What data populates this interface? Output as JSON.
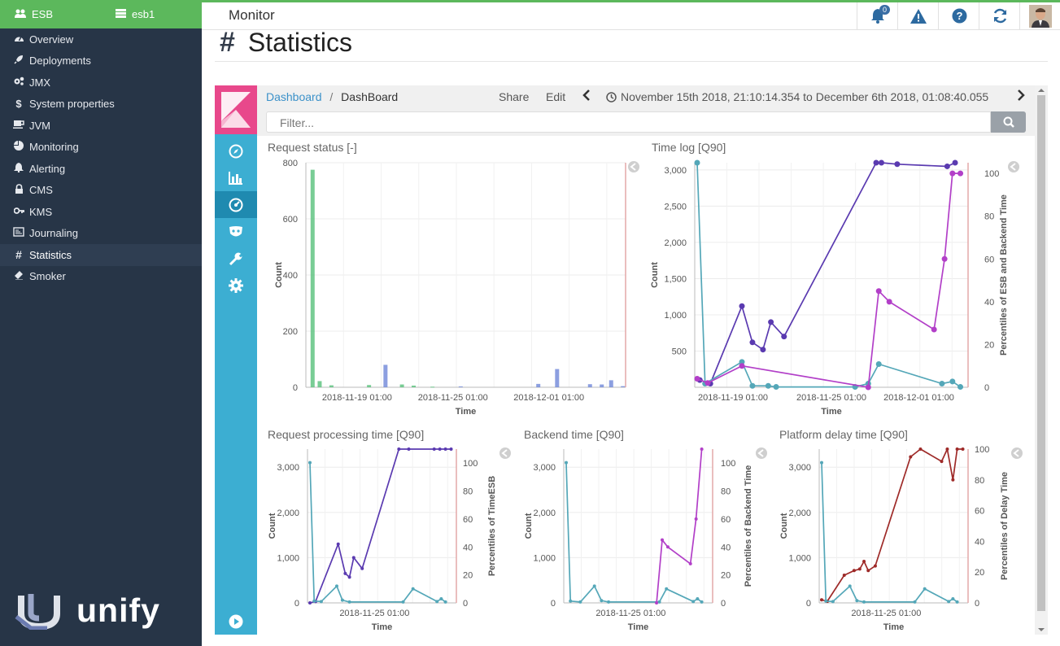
{
  "sidebar": {
    "header_left": "ESB",
    "header_right": "esb1",
    "items": [
      {
        "label": "Overview",
        "icon": "dashboard-icon"
      },
      {
        "label": "Deployments",
        "icon": "rocket-icon"
      },
      {
        "label": "JMX",
        "icon": "cogs-icon"
      },
      {
        "label": "System properties",
        "icon": "dollar-icon"
      },
      {
        "label": "JVM",
        "icon": "coffee-icon"
      },
      {
        "label": "Monitoring",
        "icon": "pie-chart-icon"
      },
      {
        "label": "Alerting",
        "icon": "bell-icon"
      },
      {
        "label": "CMS",
        "icon": "lock-icon"
      },
      {
        "label": "KMS",
        "icon": "key-icon"
      },
      {
        "label": "Journaling",
        "icon": "journal-icon"
      },
      {
        "label": "Statistics",
        "icon": "hash-icon",
        "active": true
      },
      {
        "label": "Smoker",
        "icon": "eraser-icon"
      }
    ],
    "logo_text": "unify"
  },
  "header": {
    "title": "Monitor",
    "notification_count": "0"
  },
  "page": {
    "title": "Statistics",
    "title_symbol": "#"
  },
  "kibana": {
    "breadcrumb_link": "Dashboard",
    "breadcrumb_sep": "/",
    "breadcrumb_current": "DashBoard",
    "share_label": "Share",
    "edit_label": "Edit",
    "time_range": "November 15th 2018, 21:10:14.354 to December 6th 2018, 01:08:40.055",
    "filter_placeholder": "Filter..."
  },
  "panels": {
    "request_status": "Request status [-]",
    "time_log": "Time log [Q90]",
    "request_processing": "Request processing time [Q90]",
    "backend_time": "Backend time [Q90]",
    "platform_delay": "Platform delay time [Q90]"
  },
  "colors": {
    "sidebar_bg": "#273547",
    "sidebar_header": "#5cb85c",
    "kibana_side": "#3caed2",
    "kibana_logo": "#e8488b",
    "green": "#57c17b",
    "blue": "#6f87d8",
    "teal": "#54a7b8",
    "purple": "#5a3ab0",
    "magenta": "#b23fc8",
    "darkred": "#9e2a28"
  },
  "chart_data": [
    {
      "type": "bar",
      "title": "Request status [-]",
      "xlabel": "Time",
      "ylabel": "Count",
      "ylim": [
        0,
        800
      ],
      "yticks": [
        0,
        200,
        400,
        600,
        800
      ],
      "xticks": [
        "2018-11-19 01:00",
        "2018-11-25 01:00",
        "2018-12-01 01:00"
      ],
      "x_days": [
        0.2,
        0.5,
        1.0,
        1.8,
        2.6,
        3.3,
        4.0,
        4.5,
        5.3,
        6.5,
        9.8,
        10.6,
        11.3,
        12.0,
        12.5,
        12.9,
        13.4
      ],
      "series": [
        {
          "color": "#57c17b",
          "values": [
            775,
            22,
            7,
            0,
            8,
            0,
            10,
            6,
            2,
            0,
            0,
            0,
            0,
            0,
            0,
            0,
            0
          ]
        },
        {
          "color": "#6f87d8",
          "values": [
            0,
            0,
            0,
            0,
            0,
            80,
            0,
            0,
            0,
            3,
            12,
            65,
            0,
            11,
            10,
            25,
            4
          ]
        }
      ]
    },
    {
      "type": "line",
      "title": "Time log [Q90]",
      "xlabel": "Time",
      "ylabel": "Count",
      "y2label": "Percentiles of ESB and Backend Time",
      "ylim": [
        0,
        3100
      ],
      "y2lim": [
        0,
        105
      ],
      "yticks": [
        "500",
        "1,000",
        "1,500",
        "2,000",
        "2,500",
        "3,000"
      ],
      "y2ticks": [
        0,
        20,
        40,
        60,
        80,
        100
      ],
      "xticks": [
        "2018-11-19 01:00",
        "2018-11-25 01:00",
        "2018-12-01 01:00"
      ],
      "series": [
        {
          "color": "#5a3ab0",
          "axis": "left",
          "points": [
            [
              0.1,
              100
            ],
            [
              0.5,
              50
            ],
            [
              1.7,
              1120
            ],
            [
              2.1,
              620
            ],
            [
              2.5,
              520
            ],
            [
              2.8,
              900
            ],
            [
              3.3,
              700
            ],
            [
              6.8,
              3100
            ],
            [
              7.0,
              3100
            ],
            [
              7.6,
              3080
            ],
            [
              9.5,
              3050
            ],
            [
              9.8,
              3100
            ]
          ]
        },
        {
          "color": "#54a7b8",
          "axis": "left",
          "points": [
            [
              0.0,
              3100
            ],
            [
              0.3,
              50
            ],
            [
              1.7,
              350
            ],
            [
              2.1,
              20
            ],
            [
              2.7,
              20
            ],
            [
              3.0,
              5
            ],
            [
              6.0,
              5
            ],
            [
              6.5,
              50
            ],
            [
              6.9,
              320
            ],
            [
              9.3,
              50
            ],
            [
              9.7,
              80
            ],
            [
              10.0,
              5
            ]
          ]
        },
        {
          "color": "#b23fc8",
          "axis": "right",
          "points": [
            [
              0.0,
              4
            ],
            [
              0.4,
              2
            ],
            [
              1.7,
              10
            ],
            [
              6.5,
              0
            ],
            [
              6.9,
              45
            ],
            [
              7.3,
              40
            ],
            [
              9.0,
              27
            ],
            [
              9.4,
              60
            ],
            [
              9.7,
              100
            ],
            [
              10.0,
              100
            ]
          ]
        }
      ]
    },
    {
      "type": "line",
      "title": "Request processing time [Q90]",
      "xlabel": "Time",
      "ylabel": "Count",
      "y2label": "Percentiles of TimeESB",
      "ylim": [
        0,
        3400
      ],
      "y2lim": [
        0,
        110
      ],
      "yticks": [
        "0",
        "1,000",
        "2,000",
        "3,000"
      ],
      "y2ticks": [
        0,
        20,
        40,
        60,
        80,
        100
      ],
      "xticks": [
        "2018-11-25 01:00"
      ],
      "series": [
        {
          "color": "#5a3ab0",
          "axis": "left",
          "points": [
            [
              0.0,
              0
            ],
            [
              0.4,
              30
            ],
            [
              2.0,
              1300
            ],
            [
              2.5,
              650
            ],
            [
              2.8,
              570
            ],
            [
              3.1,
              1000
            ],
            [
              3.7,
              760
            ],
            [
              6.3,
              3450
            ],
            [
              7.0,
              3450
            ],
            [
              8.8,
              3450
            ],
            [
              9.2,
              3400
            ],
            [
              9.6,
              3450
            ],
            [
              10.0,
              3450
            ]
          ]
        },
        {
          "color": "#54a7b8",
          "axis": "left",
          "points": [
            [
              0.0,
              3100
            ],
            [
              0.3,
              40
            ],
            [
              0.8,
              30
            ],
            [
              1.9,
              370
            ],
            [
              2.3,
              60
            ],
            [
              2.8,
              20
            ],
            [
              6.6,
              20
            ],
            [
              7.3,
              310
            ],
            [
              9.0,
              30
            ],
            [
              9.3,
              90
            ],
            [
              9.6,
              20
            ]
          ]
        }
      ]
    },
    {
      "type": "line",
      "title": "Backend time [Q90]",
      "xlabel": "Time",
      "ylabel": "Count",
      "y2label": "Percentiles of Backend Time",
      "ylim": [
        0,
        3400
      ],
      "y2lim": [
        0,
        110
      ],
      "yticks": [
        "0",
        "1,000",
        "2,000",
        "3,000"
      ],
      "y2ticks": [
        0,
        20,
        40,
        60,
        80,
        100
      ],
      "xticks": [
        "2018-11-25 01:00"
      ],
      "series": [
        {
          "color": "#54a7b8",
          "axis": "left",
          "points": [
            [
              0.0,
              3100
            ],
            [
              0.3,
              40
            ],
            [
              1.0,
              20
            ],
            [
              2.0,
              370
            ],
            [
              2.5,
              50
            ],
            [
              3.0,
              20
            ],
            [
              6.6,
              20
            ],
            [
              7.1,
              310
            ],
            [
              9.0,
              30
            ],
            [
              9.3,
              90
            ],
            [
              9.6,
              20
            ]
          ]
        },
        {
          "color": "#b23fc8",
          "axis": "right",
          "points": [
            [
              6.4,
              0
            ],
            [
              6.8,
              45
            ],
            [
              7.2,
              40
            ],
            [
              8.8,
              28
            ],
            [
              9.2,
              60
            ],
            [
              9.6,
              110
            ]
          ]
        }
      ]
    },
    {
      "type": "line",
      "title": "Platform delay time [Q90]",
      "xlabel": "Time",
      "ylabel": "Count",
      "y2label": "Percentiles of Delay Time",
      "ylim": [
        0,
        3400
      ],
      "y2lim": [
        0,
        100
      ],
      "yticks": [
        "0",
        "1,000",
        "2,000",
        "3,000"
      ],
      "y2ticks": [
        0,
        20,
        40,
        60,
        80,
        100
      ],
      "xticks": [
        "2018-11-25 01:00"
      ],
      "series": [
        {
          "color": "#9e2a28",
          "axis": "right",
          "points": [
            [
              0.0,
              2
            ],
            [
              0.4,
              1
            ],
            [
              1.6,
              18
            ],
            [
              2.3,
              21
            ],
            [
              2.7,
              22
            ],
            [
              3.0,
              27
            ],
            [
              3.3,
              21
            ],
            [
              3.8,
              24
            ],
            [
              6.3,
              95
            ],
            [
              7.0,
              100
            ],
            [
              8.5,
              92
            ],
            [
              8.9,
              100
            ],
            [
              9.3,
              80
            ],
            [
              9.6,
              100
            ],
            [
              10.0,
              100
            ]
          ]
        },
        {
          "color": "#54a7b8",
          "axis": "left",
          "points": [
            [
              0.0,
              3100
            ],
            [
              0.3,
              40
            ],
            [
              0.8,
              30
            ],
            [
              2.0,
              370
            ],
            [
              2.5,
              50
            ],
            [
              3.0,
              20
            ],
            [
              6.6,
              20
            ],
            [
              7.3,
              310
            ],
            [
              9.0,
              30
            ],
            [
              9.3,
              90
            ],
            [
              9.6,
              20
            ]
          ]
        }
      ]
    }
  ]
}
